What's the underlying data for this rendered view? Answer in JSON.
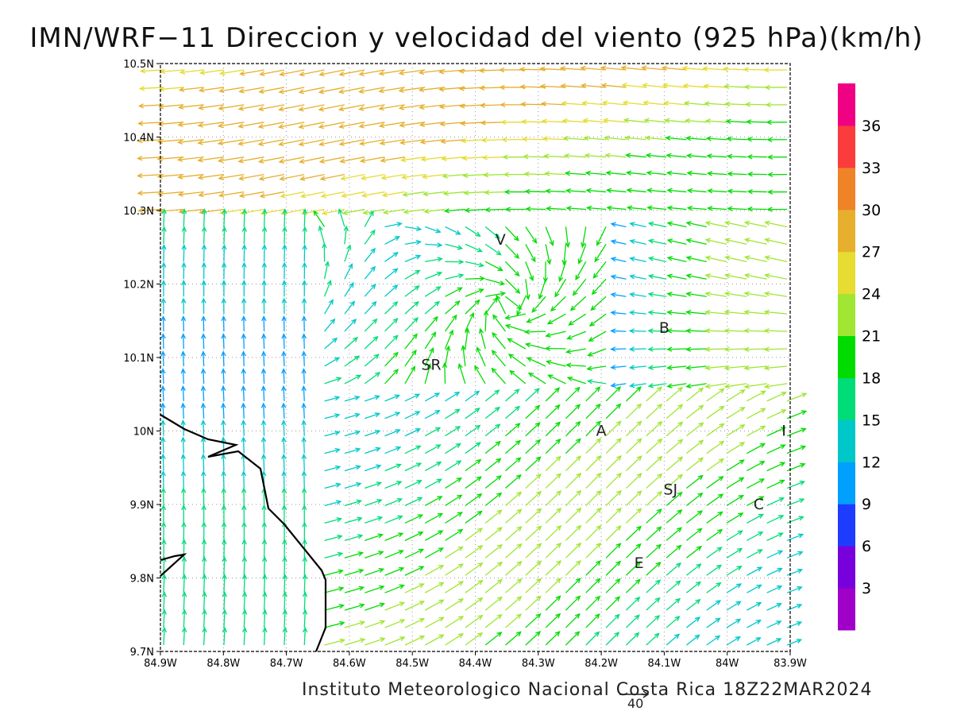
{
  "title": "IMN/WRF−11 Direccion y velocidad del viento (925 hPa)(km/h)",
  "footer": "Instituto Meteorologico Nacional Costa Rica 18Z22MAR2024",
  "reference_vector": {
    "label": "40"
  },
  "map": {
    "x_ticks": [
      "84.9W",
      "84.8W",
      "84.7W",
      "84.6W",
      "84.5W",
      "84.4W",
      "84.3W",
      "84.2W",
      "84.1W",
      "84W",
      "83.9W"
    ],
    "y_ticks": [
      "10.5N",
      "10.4N",
      "10.3N",
      "10.2N",
      "10.1N",
      "10N",
      "9.9N",
      "9.8N",
      "9.7N"
    ],
    "lon_range": [
      -84.9,
      -83.9
    ],
    "lat_range": [
      9.7,
      10.5
    ],
    "grid": true,
    "places": [
      {
        "label": "V",
        "lon": -84.36,
        "lat": 10.26
      },
      {
        "label": "B",
        "lon": -84.1,
        "lat": 10.14
      },
      {
        "label": "SR",
        "lon": -84.47,
        "lat": 10.09
      },
      {
        "label": "A",
        "lon": -84.2,
        "lat": 10.0
      },
      {
        "label": "I",
        "lon": -83.91,
        "lat": 10.0
      },
      {
        "label": "SJ",
        "lon": -84.09,
        "lat": 9.92
      },
      {
        "label": "C",
        "lon": -83.95,
        "lat": 9.9
      },
      {
        "label": "E",
        "lon": -84.14,
        "lat": 9.82
      }
    ]
  },
  "colorbar": {
    "labels": [
      "3",
      "6",
      "9",
      "12",
      "15",
      "18",
      "21",
      "24",
      "27",
      "30",
      "33",
      "36"
    ],
    "colors": [
      "#a000c8",
      "#7800dc",
      "#1e3cff",
      "#00a0ff",
      "#00c8c8",
      "#00dc78",
      "#00dc00",
      "#a0e632",
      "#e6dc32",
      "#e6af2d",
      "#f08228",
      "#fa3c3c",
      "#f00082"
    ]
  }
}
